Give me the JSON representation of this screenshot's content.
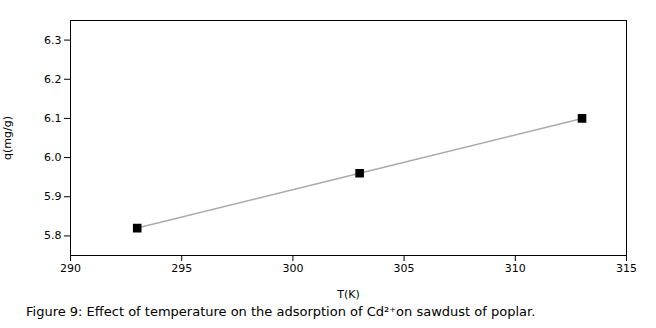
{
  "chart_data": {
    "type": "line",
    "x": [
      293,
      303,
      313
    ],
    "values": [
      5.82,
      5.96,
      6.1
    ],
    "xlabel": "T(K)",
    "ylabel": "q(mg/g)",
    "xlim": [
      290,
      315
    ],
    "ylim": [
      5.75,
      6.35
    ],
    "xticks": [
      290,
      295,
      300,
      305,
      310,
      315
    ],
    "yticks": [
      5.8,
      5.9,
      {
        "value": 6.0,
        "label": "6.0"
      },
      6.1,
      6.2,
      6.3
    ],
    "color": "#aaaaaa",
    "colors": [
      "#000000",
      "#000000",
      "#000000"
    ],
    "marker": "square",
    "caption": "Figure 9: Effect of temperature on the adsorption of Cd²⁺on sawdust of poplar."
  }
}
